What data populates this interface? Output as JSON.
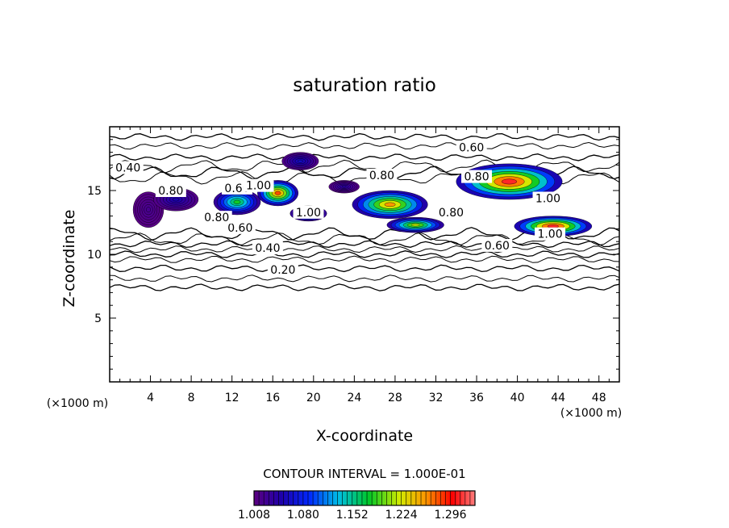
{
  "chart_data": {
    "type": "contour",
    "title": "saturation ratio",
    "xlabel": "X-coordinate",
    "ylabel": "Z-coordinate",
    "x_unit_label": "(×1000 m)",
    "z_unit_label": "(×1000 m)",
    "xlim": [
      0,
      50
    ],
    "ylim": [
      0,
      20
    ],
    "x_ticks": [
      4,
      8,
      12,
      16,
      20,
      24,
      28,
      32,
      36,
      40,
      44,
      48
    ],
    "y_ticks": [
      5,
      10,
      15
    ],
    "contour_interval_label": "CONTOUR INTERVAL = 1.000E-01",
    "contour_labels": [
      {
        "text": "0.20",
        "x": 17.0,
        "y": 8.8
      },
      {
        "text": "0.40",
        "x": 1.8,
        "y": 16.8
      },
      {
        "text": "0.40",
        "x": 15.5,
        "y": 10.5
      },
      {
        "text": "0.60",
        "x": 35.5,
        "y": 18.4
      },
      {
        "text": "0.60",
        "x": 12.5,
        "y": 15.2
      },
      {
        "text": "0.60",
        "x": 12.8,
        "y": 12.1
      },
      {
        "text": "0.60",
        "x": 38.0,
        "y": 10.7
      },
      {
        "text": "0.80",
        "x": 6.0,
        "y": 15.0
      },
      {
        "text": "0.80",
        "x": 26.7,
        "y": 16.2
      },
      {
        "text": "0.80",
        "x": 36.0,
        "y": 16.1
      },
      {
        "text": "0.80",
        "x": 10.5,
        "y": 12.9
      },
      {
        "text": "0.80",
        "x": 33.5,
        "y": 13.3
      },
      {
        "text": "1.00",
        "x": 14.6,
        "y": 15.4
      },
      {
        "text": "1.00",
        "x": 19.5,
        "y": 13.3
      },
      {
        "text": "1.00",
        "x": 43.0,
        "y": 14.4
      },
      {
        "text": "1.00",
        "x": 43.2,
        "y": 11.6
      }
    ],
    "shaded_regions": [
      {
        "cx": 3.8,
        "cy": 13.5,
        "rx": 1.5,
        "ry": 1.4,
        "peak": 1.02
      },
      {
        "cx": 6.5,
        "cy": 14.3,
        "rx": 2.2,
        "ry": 0.9,
        "peak": 1.05
      },
      {
        "cx": 12.5,
        "cy": 14.1,
        "rx": 2.3,
        "ry": 1.0,
        "peak": 1.18
      },
      {
        "cx": 16.5,
        "cy": 14.8,
        "rx": 2.0,
        "ry": 1.0,
        "peak": 1.28
      },
      {
        "cx": 18.7,
        "cy": 17.3,
        "rx": 1.8,
        "ry": 0.7,
        "peak": 1.06
      },
      {
        "cx": 19.5,
        "cy": 13.2,
        "rx": 1.8,
        "ry": 0.6,
        "peak": 1.18
      },
      {
        "cx": 23.0,
        "cy": 15.3,
        "rx": 1.5,
        "ry": 0.5,
        "peak": 1.04
      },
      {
        "cx": 27.5,
        "cy": 13.9,
        "rx": 3.7,
        "ry": 1.1,
        "peak": 1.26
      },
      {
        "cx": 30.0,
        "cy": 12.3,
        "rx": 2.8,
        "ry": 0.6,
        "peak": 1.22
      },
      {
        "cx": 39.2,
        "cy": 15.7,
        "rx": 5.2,
        "ry": 1.4,
        "peak": 1.31
      },
      {
        "cx": 43.5,
        "cy": 12.2,
        "rx": 3.8,
        "ry": 0.8,
        "peak": 1.31
      }
    ],
    "colorbar": {
      "min": 1.008,
      "max": 1.332,
      "tick_labels": [
        "1.008",
        "1.080",
        "1.152",
        "1.224",
        "1.296"
      ],
      "tick_values": [
        1.008,
        1.08,
        1.152,
        1.224,
        1.296
      ]
    }
  }
}
